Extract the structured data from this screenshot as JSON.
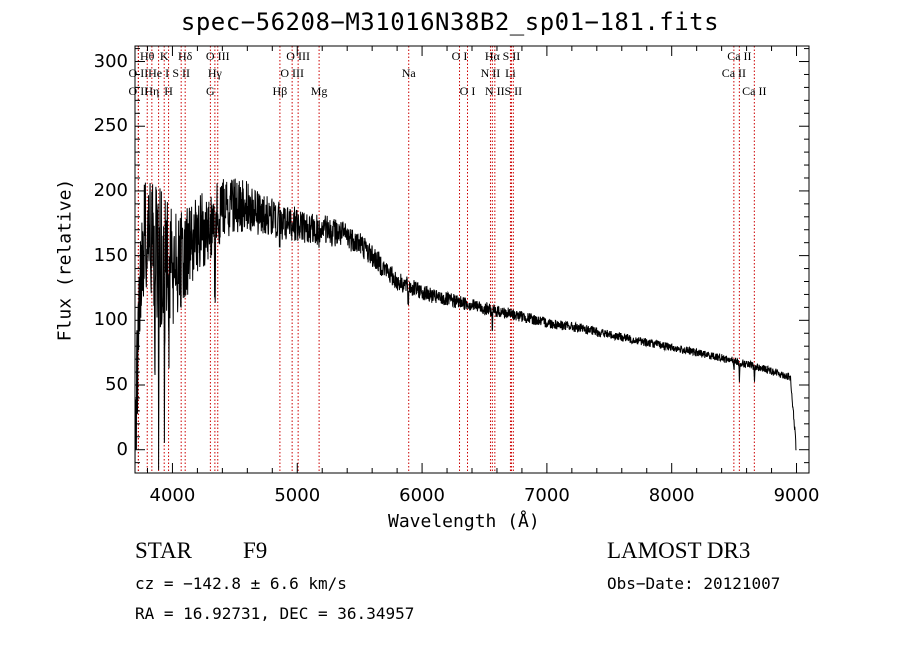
{
  "chart_data": {
    "type": "line",
    "title": "spec−56208−M31016N38B2_sp01−181.fits",
    "xlabel": "Wavelength (Å)",
    "ylabel": "Flux (relative)",
    "xlim": [
      3700,
      9100
    ],
    "ylim": [
      -18,
      312
    ],
    "xticks": [
      4000,
      5000,
      6000,
      7000,
      8000,
      9000
    ],
    "xtick_labels": [
      "4000",
      "5000",
      "6000",
      "7000",
      "8000",
      "9000"
    ],
    "yticks": [
      0,
      50,
      100,
      150,
      200,
      250,
      300
    ],
    "ytick_labels": [
      "0",
      "50",
      "100",
      "150",
      "200",
      "250",
      "300"
    ],
    "grid": false,
    "continuum": [
      [
        3700,
        0
      ],
      [
        3720,
        70
      ],
      [
        3760,
        150
      ],
      [
        3800,
        175
      ],
      [
        3850,
        160
      ],
      [
        3900,
        150
      ],
      [
        3950,
        145
      ],
      [
        4000,
        140
      ],
      [
        4100,
        150
      ],
      [
        4200,
        165
      ],
      [
        4300,
        175
      ],
      [
        4400,
        185
      ],
      [
        4500,
        190
      ],
      [
        4600,
        188
      ],
      [
        4700,
        183
      ],
      [
        4800,
        180
      ],
      [
        4900,
        175
      ],
      [
        5000,
        175
      ],
      [
        5100,
        170
      ],
      [
        5200,
        170
      ],
      [
        5300,
        168
      ],
      [
        5400,
        165
      ],
      [
        5500,
        160
      ],
      [
        5600,
        150
      ],
      [
        5700,
        140
      ],
      [
        5800,
        130
      ],
      [
        5900,
        126
      ],
      [
        6000,
        122
      ],
      [
        6100,
        118
      ],
      [
        6200,
        116
      ],
      [
        6300,
        114
      ],
      [
        6400,
        112
      ],
      [
        6500,
        109
      ],
      [
        6600,
        107
      ],
      [
        6700,
        105
      ],
      [
        6800,
        103
      ],
      [
        7000,
        98
      ],
      [
        7200,
        95
      ],
      [
        7400,
        91
      ],
      [
        7600,
        87
      ],
      [
        7800,
        83
      ],
      [
        8000,
        79
      ],
      [
        8200,
        75
      ],
      [
        8400,
        71
      ],
      [
        8600,
        66
      ],
      [
        8800,
        61
      ],
      [
        8950,
        56
      ],
      [
        9000,
        0
      ]
    ],
    "noise_envelope": [
      [
        3700,
        40
      ],
      [
        3900,
        55
      ],
      [
        4100,
        35
      ],
      [
        4300,
        28
      ],
      [
        4500,
        22
      ],
      [
        4800,
        15
      ],
      [
        5200,
        12
      ],
      [
        5600,
        9
      ],
      [
        6000,
        6
      ],
      [
        6500,
        5
      ],
      [
        7000,
        4
      ],
      [
        8000,
        3
      ],
      [
        9000,
        3
      ]
    ],
    "absorption_features": [
      {
        "x": 3860,
        "depth": -160
      },
      {
        "x": 3890,
        "depth": -140
      },
      {
        "x": 3935,
        "depth": -120
      },
      {
        "x": 3970,
        "depth": -100
      },
      {
        "x": 4340,
        "depth": -60
      },
      {
        "x": 4340,
        "depth": -50
      },
      {
        "x": 4860,
        "depth": -25
      },
      {
        "x": 5170,
        "depth": -12
      },
      {
        "x": 5890,
        "depth": -30
      },
      {
        "x": 6563,
        "depth": -18
      },
      {
        "x": 8498,
        "depth": -12
      },
      {
        "x": 8542,
        "depth": -18
      },
      {
        "x": 8662,
        "depth": -15
      }
    ],
    "spectral_lines": [
      {
        "label": "O II",
        "wavelength": 3727,
        "row": 2
      },
      {
        "label": "Hθ",
        "wavelength": 3798,
        "row": 0
      },
      {
        "label": "O II",
        "wavelength": 3727,
        "row": 1
      },
      {
        "label": "Hη",
        "wavelength": 3835,
        "row": 2
      },
      {
        "label": "K",
        "wavelength": 3934,
        "row": 0
      },
      {
        "label": "He I",
        "wavelength": 3889,
        "row": 1
      },
      {
        "label": "H",
        "wavelength": 3969,
        "row": 2
      },
      {
        "label": "S II",
        "wavelength": 4070,
        "row": 1
      },
      {
        "label": "Hδ",
        "wavelength": 4102,
        "row": 0
      },
      {
        "label": "O III",
        "wavelength": 4363,
        "row": 0
      },
      {
        "label": "Hγ",
        "wavelength": 4340,
        "row": 1
      },
      {
        "label": "G",
        "wavelength": 4304,
        "row": 2
      },
      {
        "label": "Hβ",
        "wavelength": 4861,
        "row": 2
      },
      {
        "label": "O III",
        "wavelength": 4959,
        "row": 1
      },
      {
        "label": "O III",
        "wavelength": 5007,
        "row": 0
      },
      {
        "label": "Mg",
        "wavelength": 5175,
        "row": 2
      },
      {
        "label": "Na",
        "wavelength": 5893,
        "row": 1
      },
      {
        "label": "O I",
        "wavelength": 6300,
        "row": 0
      },
      {
        "label": "O I",
        "wavelength": 6364,
        "row": 2
      },
      {
        "label": "N II",
        "wavelength": 6548,
        "row": 1
      },
      {
        "label": "Hα",
        "wavelength": 6563,
        "row": 0
      },
      {
        "label": "N II",
        "wavelength": 6583,
        "row": 2
      },
      {
        "label": "Li",
        "wavelength": 6708,
        "row": 1
      },
      {
        "label": "S II",
        "wavelength": 6716,
        "row": 0
      },
      {
        "label": "S II",
        "wavelength": 6731,
        "row": 2
      },
      {
        "label": "Ca II",
        "wavelength": 8498,
        "row": 1
      },
      {
        "label": "Ca II",
        "wavelength": 8542,
        "row": 0
      },
      {
        "label": "Ca II",
        "wavelength": 8662,
        "row": 2
      }
    ],
    "colors": {
      "spectrum": "#000000",
      "line_markers": "#cc0000",
      "axes": "#000000"
    }
  },
  "info": {
    "class": "STAR",
    "subclass": "F9",
    "survey": "LAMOST DR3",
    "redshift": "cz = −142.8 ± 6.6 km/s",
    "obs_date": "Obs−Date: 20121007",
    "coords": "RA =  16.92731, DEC =  36.34957"
  }
}
